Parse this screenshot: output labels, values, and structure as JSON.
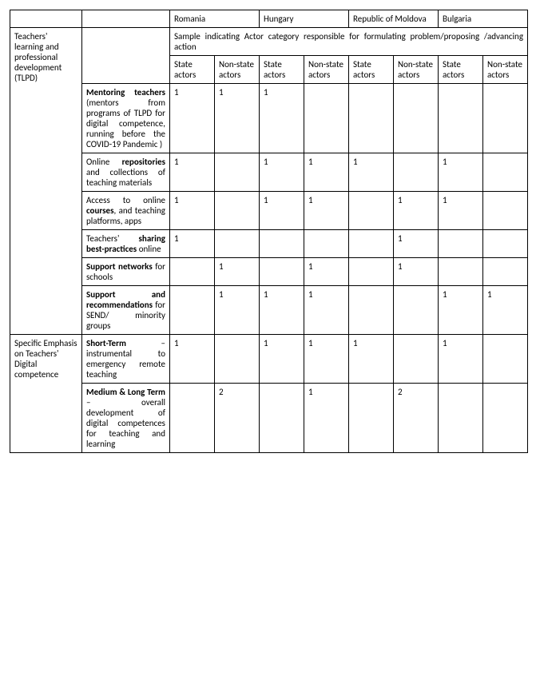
{
  "countries": {
    "c1": "Romania",
    "c2": "Hungary",
    "c3": "Republic of Moldova",
    "c4": "Bulgaria"
  },
  "banner": "Sample indicating Actor category  responsible for formulating problem/proposing /advancing action",
  "subheaders": {
    "state": "State actors",
    "nonstate": "Non-state actors"
  },
  "categories": {
    "tlpd": "Teachers' learning and professional development (TLPD)",
    "digcomp": "Specific Emphasis on Teachers' Digital competence"
  },
  "rows": {
    "r1": {
      "bold": "Mentoring teachers",
      "rest": " (mentors from programs of TLPD for digital competence, running before the COVID-19 Pandemic )",
      "v": [
        "1",
        "1",
        "1",
        "",
        "",
        "",
        "",
        ""
      ]
    },
    "r2": {
      "pre": "Online ",
      "bold": "repositories",
      "rest": " and collections of teaching materials",
      "v": [
        "1",
        "",
        "1",
        "1",
        "1",
        "",
        "1",
        ""
      ]
    },
    "r3": {
      "pre": "Access to online ",
      "bold": "courses",
      "rest": ", and teaching platforms, apps",
      "v": [
        "1",
        "",
        "1",
        "1",
        "",
        "1",
        "1",
        ""
      ]
    },
    "r4": {
      "pre": "Teachers' ",
      "bold": "sharing best-practices",
      "rest": " online",
      "v": [
        "1",
        "",
        "",
        "",
        "",
        "1",
        "",
        ""
      ]
    },
    "r5": {
      "bold": "Support networks",
      "rest": " for schools",
      "v": [
        "",
        "1",
        "",
        "1",
        "",
        "1",
        "",
        ""
      ]
    },
    "r6": {
      "bold": "Support and recommendations",
      "rest": " for SEND/ minority groups",
      "v": [
        "",
        "1",
        "1",
        "1",
        "",
        "",
        "1",
        "1"
      ]
    },
    "r7": {
      "bold": "Short-Term",
      "rest": " – instrumental to emergency remote teaching",
      "v": [
        "1",
        "",
        "1",
        "1",
        "1",
        "",
        "1",
        ""
      ]
    },
    "r8": {
      "bold": "Medium & Long Term",
      "rest": " – overall development of digital competences for teaching and learning",
      "v": [
        "",
        "2",
        "",
        "1",
        "",
        "2",
        "",
        ""
      ]
    }
  }
}
